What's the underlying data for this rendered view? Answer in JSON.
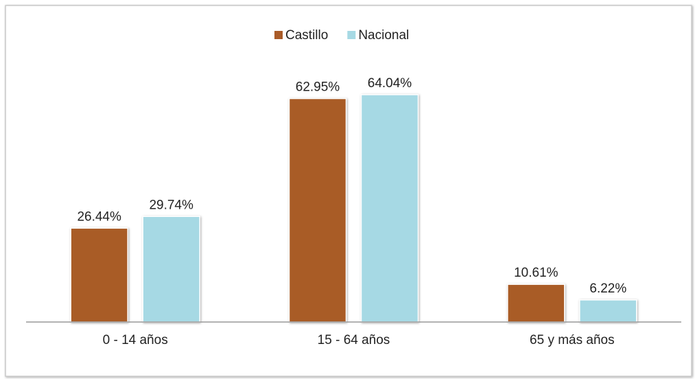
{
  "chart_data": {
    "type": "bar",
    "categories": [
      "0 - 14 años",
      "15 - 64 años",
      "65 y más años"
    ],
    "series": [
      {
        "name": "Castillo",
        "color": "#a95b28",
        "values": [
          26.44,
          62.95,
          10.61
        ],
        "value_labels": [
          "26.44%",
          "62.95%",
          "10.61%"
        ]
      },
      {
        "name": "Nacional",
        "color": "#a6d9e4",
        "values": [
          29.74,
          64.04,
          6.22
        ],
        "value_labels": [
          "29.74%",
          "64.04%",
          "6.22%"
        ]
      }
    ],
    "legend": "top"
  }
}
